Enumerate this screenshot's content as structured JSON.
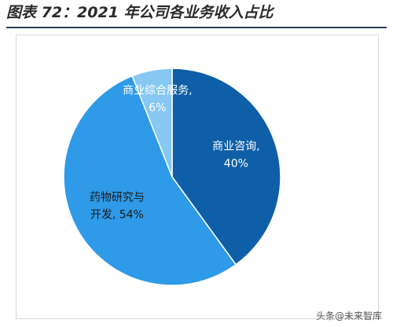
{
  "title": "图表 72：2021 年公司各业务收入占比",
  "watermark": "头条@未来智库",
  "chart_data": {
    "type": "pie",
    "title": "图表 72：2021 年公司各业务收入占比",
    "start_angle_deg": 0,
    "direction": "clockwise",
    "slices": [
      {
        "name": "商业咨询",
        "value": 40,
        "label_lines": [
          "商业咨询,",
          "40%"
        ],
        "color": "#0f5fa8",
        "label_color": "#ffffff"
      },
      {
        "name": "药物研究与开发",
        "value": 54,
        "label_lines": [
          "药物研究与",
          "开发, 54%"
        ],
        "color": "#2e9ae8",
        "label_color": "#1a1a1a"
      },
      {
        "name": "商业综合服务",
        "value": 6,
        "label_lines": [
          "商业综合服务,",
          "6%"
        ],
        "color": "#86c8f2",
        "label_color": "#ffffff"
      }
    ]
  }
}
